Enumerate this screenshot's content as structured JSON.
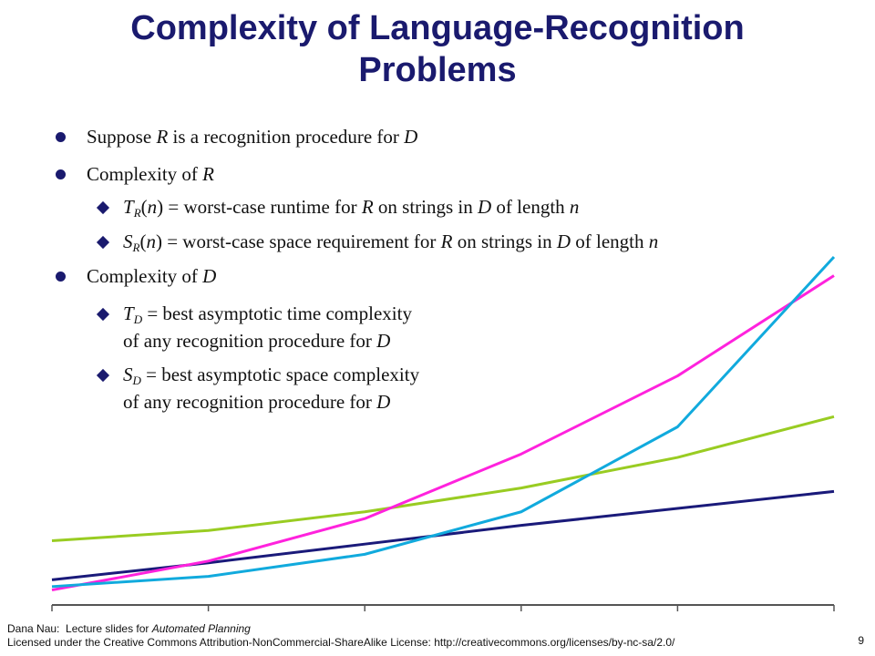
{
  "title": "Complexity of Language-Recognition Problems",
  "bullets": [
    {
      "level": 1,
      "parts": [
        {
          "t": "Suppose "
        },
        {
          "t": "R",
          "i": true
        },
        {
          "t": " is a recognition procedure for "
        },
        {
          "t": "D",
          "i": true
        }
      ]
    },
    {
      "level": 1,
      "parts": [
        {
          "t": "Complexity of "
        },
        {
          "t": "R",
          "i": true
        }
      ]
    },
    {
      "level": 2,
      "parts": [
        {
          "t": "T",
          "i": true
        },
        {
          "t": "R",
          "i": true,
          "sub": true
        },
        {
          "t": "("
        },
        {
          "t": "n",
          "i": true
        },
        {
          "t": ") = worst-case runtime for "
        },
        {
          "t": "R",
          "i": true
        },
        {
          "t": " on strings in "
        },
        {
          "t": "D",
          "i": true
        },
        {
          "t": " of length "
        },
        {
          "t": "n",
          "i": true
        }
      ]
    },
    {
      "level": 2,
      "parts": [
        {
          "t": "S",
          "i": true
        },
        {
          "t": "R",
          "i": true,
          "sub": true
        },
        {
          "t": "("
        },
        {
          "t": "n",
          "i": true
        },
        {
          "t": ") = worst-case space requirement for "
        },
        {
          "t": "R",
          "i": true
        },
        {
          "t": " on strings in "
        },
        {
          "t": "D",
          "i": true
        },
        {
          "t": " of length "
        },
        {
          "t": "n",
          "i": true
        }
      ]
    },
    {
      "level": 1,
      "parts": [
        {
          "t": "Complexity of "
        },
        {
          "t": "D",
          "i": true
        }
      ]
    },
    {
      "level": 2,
      "parts": [
        {
          "t": "T",
          "i": true
        },
        {
          "t": "D",
          "i": true,
          "sub": true
        },
        {
          "t": " = best asymptotic time complexity"
        }
      ]
    },
    {
      "level": 2,
      "cont": true,
      "parts": [
        {
          "t": "of any recognition procedure for "
        },
        {
          "t": "D",
          "i": true
        }
      ]
    },
    {
      "level": 2,
      "parts": [
        {
          "t": "S",
          "i": true
        },
        {
          "t": "D",
          "i": true,
          "sub": true
        },
        {
          "t": " = best asymptotic space complexity"
        }
      ]
    },
    {
      "level": 2,
      "cont": true,
      "parts": [
        {
          "t": "of any recognition procedure for "
        },
        {
          "t": "D",
          "i": true
        }
      ]
    }
  ],
  "chart_data": {
    "type": "line",
    "x": [
      0,
      1,
      2,
      3,
      4,
      5
    ],
    "ylim": [
      0,
      100
    ],
    "series": [
      {
        "color": "#1a1a7a",
        "values": [
          5,
          10,
          15.5,
          21,
          26,
          31
        ]
      },
      {
        "color": "#99cc22",
        "values": [
          16.5,
          19.5,
          25,
          32,
          41,
          53
        ]
      },
      {
        "color": "#ff22dd",
        "values": [
          2,
          10.5,
          23,
          42,
          65,
          94.5
        ]
      },
      {
        "color": "#11aadd",
        "values": [
          3,
          6,
          12.5,
          25,
          50,
          100
        ]
      }
    ]
  },
  "footer": {
    "line1_prefix": "Dana Nau:  Lecture slides for ",
    "line1_italic": "Automated Planning",
    "line2": "Licensed under the Creative Commons Attribution-NonCommercial-ShareAlike License: http://creativecommons.org/licenses/by-nc-sa/2.0/"
  },
  "page_number": "9"
}
